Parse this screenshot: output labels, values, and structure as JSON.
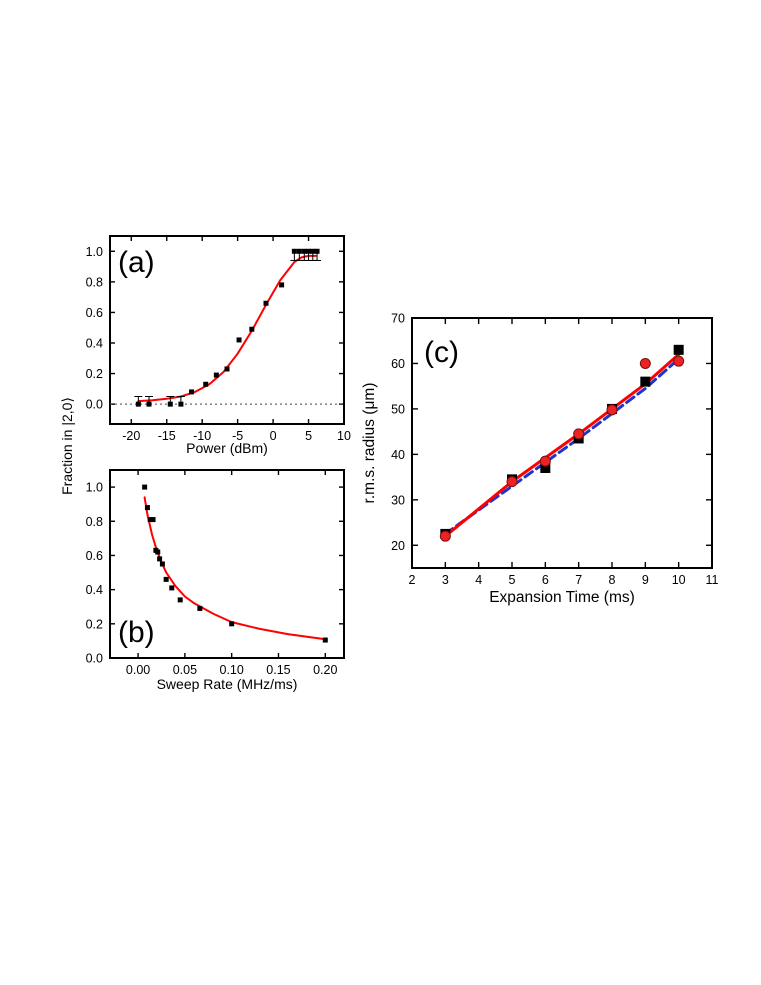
{
  "shared_ylabel": "Fraction in |2,0⟩",
  "chart_data": [
    {
      "id": "a",
      "type": "scatter",
      "panel_label": "(a)",
      "xlabel": "Power (dBm)",
      "ylabel": "Fraction in |2,0⟩",
      "xlim": [
        -23,
        10
      ],
      "ylim": [
        -0.13,
        1.1
      ],
      "xticks": [
        -20,
        -15,
        -10,
        -5,
        0,
        5,
        10
      ],
      "xtick_labels": [
        "-20",
        "-15",
        "-10",
        "-5",
        "0",
        "5",
        "10"
      ],
      "yticks": [
        0.0,
        0.2,
        0.4,
        0.6,
        0.8,
        1.0
      ],
      "ytick_labels": [
        "0.0",
        "0.2",
        "0.4",
        "0.6",
        "0.8",
        "1.0"
      ],
      "reference_line": {
        "y": 0.0,
        "style": "dotted"
      },
      "series": [
        {
          "name": "data",
          "x": [
            -19.0,
            -17.5,
            -14.5,
            -13.0,
            -11.5,
            -9.5,
            -8.0,
            -6.5,
            -4.8,
            -3.0,
            -1.0,
            1.2,
            3.0,
            3.7,
            4.4,
            5.0,
            5.6,
            6.2
          ],
          "y": [
            0.0,
            0.0,
            0.0,
            0.0,
            0.08,
            0.13,
            0.19,
            0.23,
            0.42,
            0.49,
            0.66,
            0.78,
            1.0,
            1.0,
            1.0,
            1.0,
            1.0,
            1.0
          ],
          "error_bars": [
            {
              "x": -19.0,
              "y": 0.0,
              "plus": 0.05,
              "minus": 0.0
            },
            {
              "x": -17.5,
              "y": 0.0,
              "plus": 0.05,
              "minus": 0.0
            },
            {
              "x": -14.5,
              "y": 0.0,
              "plus": 0.05,
              "minus": 0.0
            },
            {
              "x": -13.0,
              "y": 0.0,
              "plus": 0.05,
              "minus": 0.0
            },
            {
              "x": 3.0,
              "y": 1.0,
              "plus": 0.0,
              "minus": 0.06
            },
            {
              "x": 3.7,
              "y": 1.0,
              "plus": 0.0,
              "minus": 0.06
            },
            {
              "x": 4.4,
              "y": 1.0,
              "plus": 0.0,
              "minus": 0.06
            },
            {
              "x": 5.0,
              "y": 1.0,
              "plus": 0.0,
              "minus": 0.06
            },
            {
              "x": 5.6,
              "y": 1.0,
              "plus": 0.0,
              "minus": 0.06
            },
            {
              "x": 6.2,
              "y": 1.0,
              "plus": 0.0,
              "minus": 0.06
            }
          ],
          "marker": "square",
          "color": "#000000"
        },
        {
          "name": "fit",
          "type": "line",
          "color": "#ff0000",
          "x": [
            -19,
            -17,
            -15,
            -13,
            -11,
            -9,
            -7,
            -5,
            -3,
            -1,
            1,
            3,
            4,
            5,
            6
          ],
          "y": [
            0.02,
            0.025,
            0.035,
            0.05,
            0.08,
            0.13,
            0.21,
            0.33,
            0.48,
            0.65,
            0.81,
            0.93,
            0.96,
            0.97,
            0.97
          ]
        }
      ]
    },
    {
      "id": "b",
      "type": "scatter",
      "panel_label": "(b)",
      "xlabel": "Sweep Rate (MHz/ms)",
      "ylabel": "Fraction in |2,0⟩",
      "xlim": [
        -0.03,
        0.22
      ],
      "ylim": [
        0.0,
        1.1
      ],
      "xticks": [
        0.0,
        0.05,
        0.1,
        0.15,
        0.2
      ],
      "xtick_labels": [
        "0.00",
        "0.05",
        "0.10",
        "0.15",
        "0.20"
      ],
      "yticks": [
        0.0,
        0.2,
        0.4,
        0.6,
        0.8,
        1.0
      ],
      "ytick_labels": [
        "0.0",
        "0.2",
        "0.4",
        "0.6",
        "0.8",
        "1.0"
      ],
      "series": [
        {
          "name": "data",
          "x": [
            0.007,
            0.01,
            0.013,
            0.016,
            0.019,
            0.021,
            0.023,
            0.026,
            0.03,
            0.036,
            0.045,
            0.066,
            0.1,
            0.2
          ],
          "y": [
            1.0,
            0.88,
            0.81,
            0.81,
            0.63,
            0.62,
            0.58,
            0.55,
            0.46,
            0.41,
            0.34,
            0.29,
            0.2,
            0.105
          ],
          "marker": "square",
          "color": "#000000"
        },
        {
          "name": "fit",
          "type": "line",
          "color": "#ff0000",
          "x": [
            0.007,
            0.01,
            0.015,
            0.02,
            0.025,
            0.03,
            0.04,
            0.05,
            0.06,
            0.08,
            0.1,
            0.13,
            0.16,
            0.2
          ],
          "y": [
            0.94,
            0.84,
            0.72,
            0.63,
            0.56,
            0.5,
            0.42,
            0.36,
            0.32,
            0.26,
            0.21,
            0.17,
            0.14,
            0.11
          ]
        }
      ]
    },
    {
      "id": "c",
      "type": "scatter",
      "panel_label": "(c)",
      "xlabel": "Expansion Time (ms)",
      "ylabel": "r.m.s. radius (μm)",
      "xlim": [
        2,
        11
      ],
      "ylim": [
        15,
        70
      ],
      "xticks": [
        2,
        3,
        4,
        5,
        6,
        7,
        8,
        9,
        10,
        11
      ],
      "xtick_labels": [
        "2",
        "3",
        "4",
        "5",
        "6",
        "7",
        "8",
        "9",
        "10",
        "11"
      ],
      "yticks": [
        20,
        30,
        40,
        50,
        60,
        70
      ],
      "ytick_labels": [
        "20",
        "30",
        "40",
        "50",
        "60",
        "70"
      ],
      "series": [
        {
          "name": "squares",
          "marker": "square",
          "color": "#000000",
          "x": [
            3,
            5,
            6,
            7,
            8,
            9,
            10
          ],
          "y": [
            22.5,
            34.5,
            37,
            43.5,
            50,
            56,
            63
          ]
        },
        {
          "name": "circles",
          "marker": "circle",
          "color": "#ee2222",
          "x": [
            3,
            5,
            6,
            7,
            8,
            9,
            10
          ],
          "y": [
            22,
            34,
            38.5,
            44.5,
            49.8,
            60,
            60.5
          ]
        },
        {
          "name": "fit-squares",
          "type": "line",
          "style": "dashed",
          "color": "#2233cc",
          "x": [
            3,
            5,
            7,
            9,
            10
          ],
          "y": [
            22.5,
            33,
            43.5,
            54.5,
            61
          ]
        },
        {
          "name": "fit-circles",
          "type": "line",
          "style": "solid",
          "color": "#ff0000",
          "x": [
            3,
            5,
            7,
            9,
            10
          ],
          "y": [
            22,
            34,
            44.5,
            55.5,
            62
          ]
        }
      ]
    }
  ]
}
